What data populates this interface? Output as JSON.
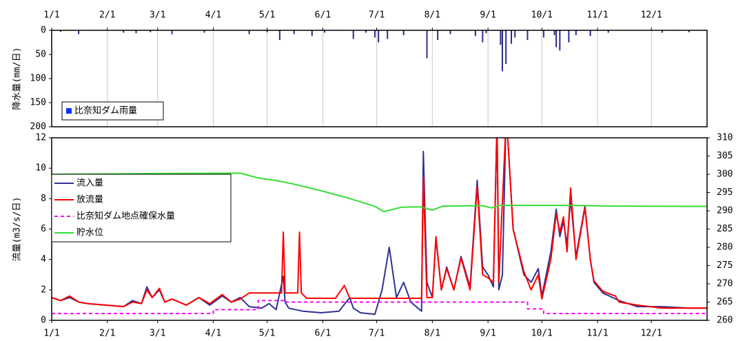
{
  "chart_data": [
    {
      "type": "bar",
      "ylabel": "降水量(mm/日)",
      "inverted": true,
      "grid": "x",
      "legend": "lower left",
      "xlim": [
        0,
        365
      ],
      "xticks": [
        {
          "value": 0,
          "label": "1/1"
        },
        {
          "value": 31,
          "label": "2/1"
        },
        {
          "value": 59,
          "label": "3/1"
        },
        {
          "value": 90,
          "label": "4/1"
        },
        {
          "value": 120,
          "label": "5/1"
        },
        {
          "value": 151,
          "label": "6/1"
        },
        {
          "value": 181,
          "label": "7/1"
        },
        {
          "value": 212,
          "label": "8/1"
        },
        {
          "value": 243,
          "label": "9/1"
        },
        {
          "value": 273,
          "label": "10/1"
        },
        {
          "value": 304,
          "label": "11/1"
        },
        {
          "value": 334,
          "label": "12/1"
        }
      ],
      "ylim": [
        0,
        200
      ],
      "yticks": [
        0,
        50,
        100,
        150,
        200
      ],
      "series": [
        {
          "name": "比奈知ダム雨量",
          "color": "#2b2b8a",
          "legend_color": "#0033ff",
          "x": [
            5,
            15,
            40,
            47,
            55,
            67,
            85,
            110,
            120,
            127,
            135,
            145,
            152,
            168,
            175,
            180,
            182,
            187,
            196,
            209,
            215,
            222,
            236,
            240,
            242,
            250,
            251,
            253,
            256,
            258,
            265,
            274,
            280,
            281,
            283,
            288,
            292,
            300,
            310,
            340,
            355
          ],
          "values": [
            3,
            8,
            5,
            6,
            4,
            8,
            5,
            8,
            4,
            20,
            8,
            12,
            5,
            18,
            5,
            15,
            25,
            18,
            10,
            58,
            20,
            8,
            12,
            25,
            6,
            30,
            85,
            70,
            28,
            15,
            20,
            15,
            10,
            35,
            42,
            25,
            10,
            12,
            5,
            5,
            4
          ]
        }
      ]
    },
    {
      "type": "line",
      "ylabel": "流量(m3/s/日)",
      "grid": false,
      "legend": "upper left",
      "xlim": [
        0,
        365
      ],
      "xticks": [
        {
          "value": 0,
          "label": "1/1"
        },
        {
          "value": 31,
          "label": "2/1"
        },
        {
          "value": 59,
          "label": "3/1"
        },
        {
          "value": 90,
          "label": "4/1"
        },
        {
          "value": 120,
          "label": "5/1"
        },
        {
          "value": 151,
          "label": "6/1"
        },
        {
          "value": 181,
          "label": "7/1"
        },
        {
          "value": 212,
          "label": "8/1"
        },
        {
          "value": 243,
          "label": "9/1"
        },
        {
          "value": 273,
          "label": "10/1"
        },
        {
          "value": 304,
          "label": "11/1"
        },
        {
          "value": 334,
          "label": "12/1"
        }
      ],
      "ylim": [
        0,
        12
      ],
      "yticks": [
        0,
        2,
        4,
        6,
        8,
        10,
        12
      ],
      "y2lim": [
        260,
        310
      ],
      "y2ticks": [
        260,
        265,
        270,
        275,
        280,
        285,
        290,
        295,
        300,
        305,
        310
      ],
      "series": [
        {
          "name": "流入量",
          "color": "#2e3192",
          "x": [
            0,
            5,
            10,
            15,
            20,
            30,
            40,
            45,
            50,
            53,
            56,
            60,
            63,
            67,
            75,
            82,
            88,
            95,
            100,
            105,
            110,
            117,
            121,
            125,
            129,
            130,
            132,
            140,
            150,
            160,
            166,
            168,
            172,
            180,
            184,
            188,
            192,
            196,
            200,
            206,
            207,
            209,
            212,
            214,
            217,
            220,
            224,
            228,
            233,
            237,
            240,
            243,
            246,
            248,
            249,
            251,
            253,
            254,
            257,
            263,
            267,
            271,
            273,
            278,
            281,
            283,
            285,
            287,
            289,
            292,
            297,
            300,
            302,
            307,
            316,
            326,
            340,
            355,
            365
          ],
          "values": [
            1.5,
            1.3,
            1.5,
            1.2,
            1.1,
            1.0,
            0.9,
            1.3,
            1.1,
            2.2,
            1.5,
            2.0,
            1.2,
            1.4,
            1.0,
            1.5,
            1.0,
            1.6,
            1.2,
            1.5,
            0.9,
            0.8,
            1.1,
            0.7,
            2.9,
            1.2,
            0.8,
            0.6,
            0.5,
            0.6,
            1.5,
            0.8,
            0.5,
            0.4,
            2.0,
            4.8,
            1.5,
            2.5,
            1.2,
            0.6,
            11.1,
            2.5,
            1.5,
            5.4,
            2.0,
            3.5,
            2.0,
            4.2,
            2.2,
            9.2,
            3.5,
            3.0,
            2.2,
            13,
            2.0,
            3.0,
            13,
            12,
            6,
            3.0,
            2.5,
            3.4,
            1.6,
            4.5,
            7.3,
            5.5,
            6.5,
            5.0,
            8.0,
            4.2,
            7.5,
            4.0,
            2.5,
            1.8,
            1.3,
            0.9,
            0.9,
            0.8,
            0.8
          ]
        },
        {
          "name": "放流量",
          "color": "#ff0000",
          "x": [
            0,
            5,
            10,
            15,
            20,
            30,
            40,
            45,
            50,
            53,
            56,
            60,
            63,
            67,
            75,
            82,
            88,
            95,
            100,
            105,
            110,
            128,
            129,
            130,
            137,
            138,
            139,
            142,
            158,
            163,
            166,
            206,
            207,
            209,
            212,
            214,
            217,
            220,
            224,
            228,
            233,
            237,
            240,
            243,
            246,
            248,
            249,
            253,
            254,
            257,
            263,
            267,
            271,
            273,
            278,
            281,
            283,
            285,
            287,
            289,
            292,
            297,
            300,
            302,
            307,
            314,
            316,
            326,
            340,
            355,
            365
          ],
          "values": [
            1.5,
            1.3,
            1.6,
            1.2,
            1.1,
            1.0,
            0.9,
            1.2,
            1.1,
            2.0,
            1.5,
            2.1,
            1.2,
            1.4,
            1.0,
            1.5,
            1.1,
            1.7,
            1.2,
            1.4,
            1.8,
            1.8,
            5.8,
            1.8,
            1.8,
            5.8,
            1.8,
            1.45,
            1.45,
            2.3,
            1.45,
            1.45,
            9.4,
            1.5,
            1.5,
            5.5,
            2.0,
            3.4,
            2.0,
            4.1,
            2.0,
            8.8,
            3.0,
            2.8,
            2.5,
            13,
            2.5,
            13,
            12,
            6,
            3.2,
            2.0,
            3.0,
            1.4,
            4.0,
            7.0,
            5.8,
            6.8,
            4.5,
            8.7,
            4.0,
            7.4,
            4.0,
            2.6,
            1.9,
            1.6,
            1.2,
            1.0,
            0.8,
            0.8,
            0.8
          ]
        },
        {
          "name": "比奈知ダム地点確保水量",
          "color": "#ff00ff",
          "dashed": true,
          "x": [
            0,
            90,
            90,
            115,
            115,
            130,
            130,
            265,
            265,
            274,
            274,
            365
          ],
          "values": [
            0.45,
            0.45,
            0.7,
            0.7,
            1.3,
            1.3,
            1.2,
            1.2,
            0.75,
            0.75,
            0.45,
            0.45
          ]
        },
        {
          "name": "貯水位",
          "color": "#33dd33",
          "axis": "y2",
          "x": [
            0,
            60,
            105,
            115,
            125,
            135,
            150,
            165,
            180,
            185,
            195,
            205,
            212,
            218,
            240,
            245,
            250,
            290,
            310,
            365
          ],
          "values": [
            300,
            300.2,
            300.3,
            299,
            298.3,
            297.3,
            295.5,
            293.5,
            291.2,
            289.8,
            291.0,
            291.1,
            290.2,
            291.3,
            291.4,
            290.8,
            291.5,
            291.5,
            291.3,
            291.2
          ]
        }
      ]
    }
  ]
}
